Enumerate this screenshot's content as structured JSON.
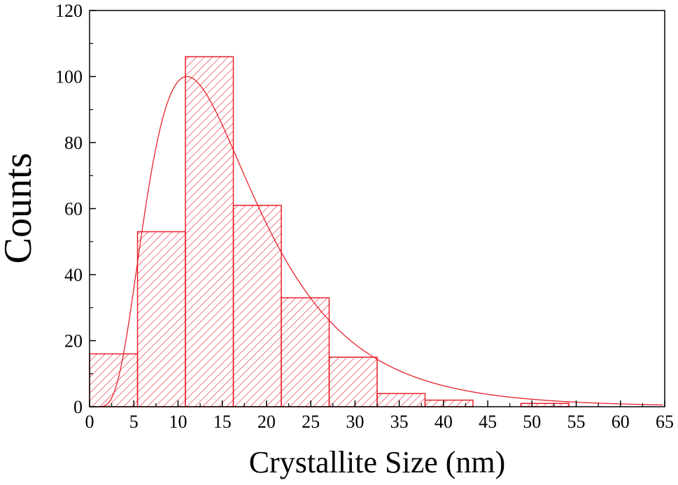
{
  "chart_data": {
    "type": "bar",
    "title": "",
    "xlabel": "Crystallite Size (nm)",
    "ylabel": "Counts",
    "xlim": [
      0,
      65
    ],
    "ylim": [
      0,
      120
    ],
    "x_ticks": [
      0,
      5,
      10,
      15,
      20,
      25,
      30,
      35,
      40,
      45,
      50,
      55,
      60,
      65
    ],
    "y_ticks": [
      0,
      20,
      40,
      60,
      80,
      100,
      120
    ],
    "bin_edges": [
      0,
      5.42,
      10.83,
      16.25,
      21.67,
      27.08,
      32.5,
      37.92,
      43.33,
      48.75,
      54.17,
      59.58,
      65
    ],
    "values": [
      16,
      53,
      106,
      61,
      33,
      15,
      4,
      2,
      0,
      1,
      0,
      0
    ],
    "fit_curve": {
      "type": "lognormal",
      "peak_x": 11,
      "peak_y": 100
    },
    "grid": false,
    "legend": "none",
    "colors": {
      "bars": "#e8202a",
      "curve": "#e8202a",
      "axes": "#000000"
    },
    "hatch": "diagonal"
  }
}
